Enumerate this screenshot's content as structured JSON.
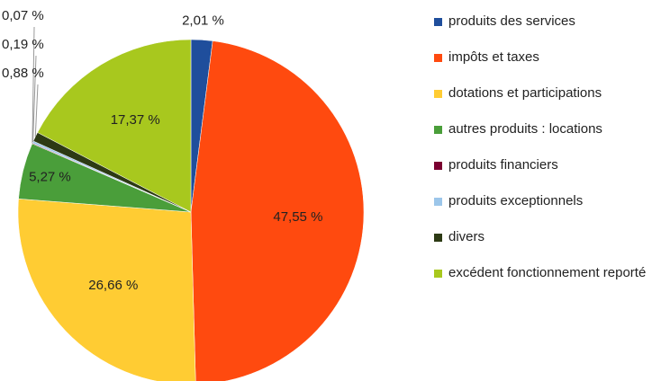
{
  "chart_data": {
    "type": "pie",
    "categories": [
      "produits des services",
      "impôts et taxes",
      "dotations et participations",
      "autres produits : locations",
      "produits financiers",
      "produits exceptionnels",
      "divers",
      "excédent fonctionnement reporté"
    ],
    "values": [
      2.01,
      47.55,
      26.66,
      5.27,
      0.07,
      0.19,
      0.88,
      17.37
    ],
    "value_labels": [
      "2,01 %",
      "47,55 %",
      "26,66 %",
      "5,27 %",
      "0,07 %",
      "0,19 %",
      "0,88 %",
      "17,37 %"
    ],
    "colors": [
      "#1f4e9c",
      "#ff4a0f",
      "#ffcc33",
      "#4a9e3a",
      "#7a0030",
      "#9cc6ea",
      "#2d3a14",
      "#a8c81e"
    ]
  }
}
